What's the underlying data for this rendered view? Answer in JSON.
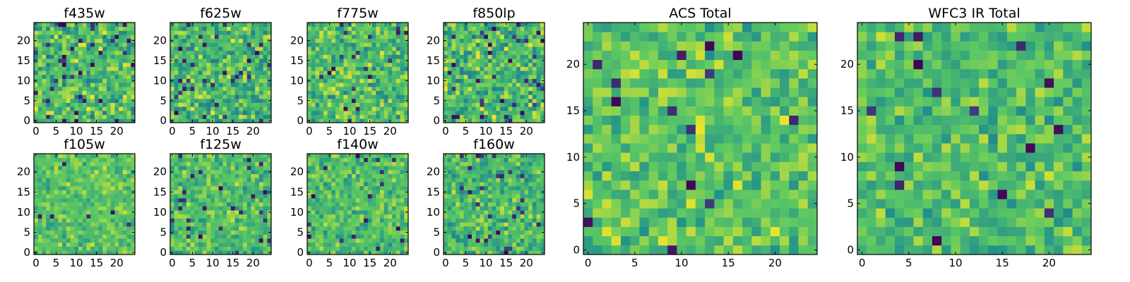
{
  "chart_data": {
    "type": "heatmap",
    "grid_size": 25,
    "colormap": "viridis",
    "colormap_stops": [
      "#440154",
      "#3b528b",
      "#21918c",
      "#5ec962",
      "#fde725"
    ],
    "panels": [
      {
        "title": "f435w",
        "x_ticks": [
          "0",
          "5",
          "10",
          "15",
          "20"
        ],
        "y_ticks": [
          "0",
          "5",
          "10",
          "15",
          "20"
        ],
        "x_tick_values": [
          0,
          5,
          10,
          15,
          20
        ],
        "y_tick_values": [
          0,
          5,
          10,
          15,
          20
        ],
        "xlim": [
          -0.5,
          24.5
        ],
        "ylim": [
          -0.5,
          24.5
        ],
        "intensity_mean": 0.68,
        "intensity_spread": 0.32,
        "dark_pixel_fraction": 0.05,
        "seed": 11
      },
      {
        "title": "f625w",
        "x_ticks": [
          "0",
          "5",
          "10",
          "15",
          "20"
        ],
        "y_ticks": [
          "0",
          "5",
          "10",
          "15",
          "20"
        ],
        "x_tick_values": [
          0,
          5,
          10,
          15,
          20
        ],
        "y_tick_values": [
          0,
          5,
          10,
          15,
          20
        ],
        "xlim": [
          -0.5,
          24.5
        ],
        "ylim": [
          -0.5,
          24.5
        ],
        "intensity_mean": 0.68,
        "intensity_spread": 0.32,
        "dark_pixel_fraction": 0.05,
        "seed": 23
      },
      {
        "title": "f775w",
        "x_ticks": [
          "0",
          "5",
          "10",
          "15",
          "20"
        ],
        "y_ticks": [
          "0",
          "5",
          "10",
          "15",
          "20"
        ],
        "x_tick_values": [
          0,
          5,
          10,
          15,
          20
        ],
        "y_tick_values": [
          0,
          5,
          10,
          15,
          20
        ],
        "xlim": [
          -0.5,
          24.5
        ],
        "ylim": [
          -0.5,
          24.5
        ],
        "intensity_mean": 0.7,
        "intensity_spread": 0.3,
        "dark_pixel_fraction": 0.04,
        "seed": 37
      },
      {
        "title": "f850lp",
        "x_ticks": [
          "0",
          "5",
          "10",
          "15",
          "20"
        ],
        "y_ticks": [
          "0",
          "5",
          "10",
          "15",
          "20"
        ],
        "x_tick_values": [
          0,
          5,
          10,
          15,
          20
        ],
        "y_tick_values": [
          0,
          5,
          10,
          15,
          20
        ],
        "xlim": [
          -0.5,
          24.5
        ],
        "ylim": [
          -0.5,
          24.5
        ],
        "intensity_mean": 0.68,
        "intensity_spread": 0.32,
        "dark_pixel_fraction": 0.05,
        "seed": 41
      },
      {
        "title": "f105w",
        "x_ticks": [
          "0",
          "5",
          "10",
          "15",
          "20"
        ],
        "y_ticks": [
          "0",
          "5",
          "10",
          "15",
          "20"
        ],
        "x_tick_values": [
          0,
          5,
          10,
          15,
          20
        ],
        "y_tick_values": [
          0,
          5,
          10,
          15,
          20
        ],
        "xlim": [
          -0.5,
          24.5
        ],
        "ylim": [
          -0.5,
          24.5
        ],
        "intensity_mean": 0.72,
        "intensity_spread": 0.22,
        "dark_pixel_fraction": 0.02,
        "seed": 53
      },
      {
        "title": "f125w",
        "x_ticks": [
          "0",
          "5",
          "10",
          "15",
          "20"
        ],
        "y_ticks": [
          "0",
          "5",
          "10",
          "15",
          "20"
        ],
        "x_tick_values": [
          0,
          5,
          10,
          15,
          20
        ],
        "y_tick_values": [
          0,
          5,
          10,
          15,
          20
        ],
        "xlim": [
          -0.5,
          24.5
        ],
        "ylim": [
          -0.5,
          24.5
        ],
        "intensity_mean": 0.7,
        "intensity_spread": 0.24,
        "dark_pixel_fraction": 0.03,
        "seed": 67
      },
      {
        "title": "f140w",
        "x_ticks": [
          "0",
          "5",
          "10",
          "15",
          "20"
        ],
        "y_ticks": [
          "0",
          "5",
          "10",
          "15",
          "20"
        ],
        "x_tick_values": [
          0,
          5,
          10,
          15,
          20
        ],
        "y_tick_values": [
          0,
          5,
          10,
          15,
          20
        ],
        "xlim": [
          -0.5,
          24.5
        ],
        "ylim": [
          -0.5,
          24.5
        ],
        "intensity_mean": 0.7,
        "intensity_spread": 0.24,
        "dark_pixel_fraction": 0.03,
        "seed": 79
      },
      {
        "title": "f160w",
        "x_ticks": [
          "0",
          "5",
          "10",
          "15",
          "20"
        ],
        "y_ticks": [
          "0",
          "5",
          "10",
          "15",
          "20"
        ],
        "x_tick_values": [
          0,
          5,
          10,
          15,
          20
        ],
        "y_tick_values": [
          0,
          5,
          10,
          15,
          20
        ],
        "xlim": [
          -0.5,
          24.5
        ],
        "ylim": [
          -0.5,
          24.5
        ],
        "intensity_mean": 0.68,
        "intensity_spread": 0.26,
        "dark_pixel_fraction": 0.04,
        "seed": 83
      },
      {
        "title": "ACS Total",
        "x_ticks": [
          "0",
          "5",
          "10",
          "15",
          "20"
        ],
        "y_ticks": [
          "0",
          "5",
          "10",
          "15",
          "20"
        ],
        "x_tick_values": [
          0,
          5,
          10,
          15,
          20
        ],
        "y_tick_values": [
          0,
          5,
          10,
          15,
          20
        ],
        "xlim": [
          -0.5,
          24.5
        ],
        "ylim": [
          -0.5,
          24.5
        ],
        "intensity_mean": 0.72,
        "intensity_spread": 0.26,
        "dark_pixel_fraction": 0.03,
        "seed": 97
      },
      {
        "title": "WFC3 IR Total",
        "x_ticks": [
          "0",
          "5",
          "10",
          "15",
          "20"
        ],
        "y_ticks": [
          "0",
          "5",
          "10",
          "15",
          "20"
        ],
        "x_tick_values": [
          0,
          5,
          10,
          15,
          20
        ],
        "y_tick_values": [
          0,
          5,
          10,
          15,
          20
        ],
        "xlim": [
          -0.5,
          24.5
        ],
        "ylim": [
          -0.5,
          24.5
        ],
        "intensity_mean": 0.7,
        "intensity_spread": 0.24,
        "dark_pixel_fraction": 0.03,
        "seed": 101
      }
    ]
  }
}
